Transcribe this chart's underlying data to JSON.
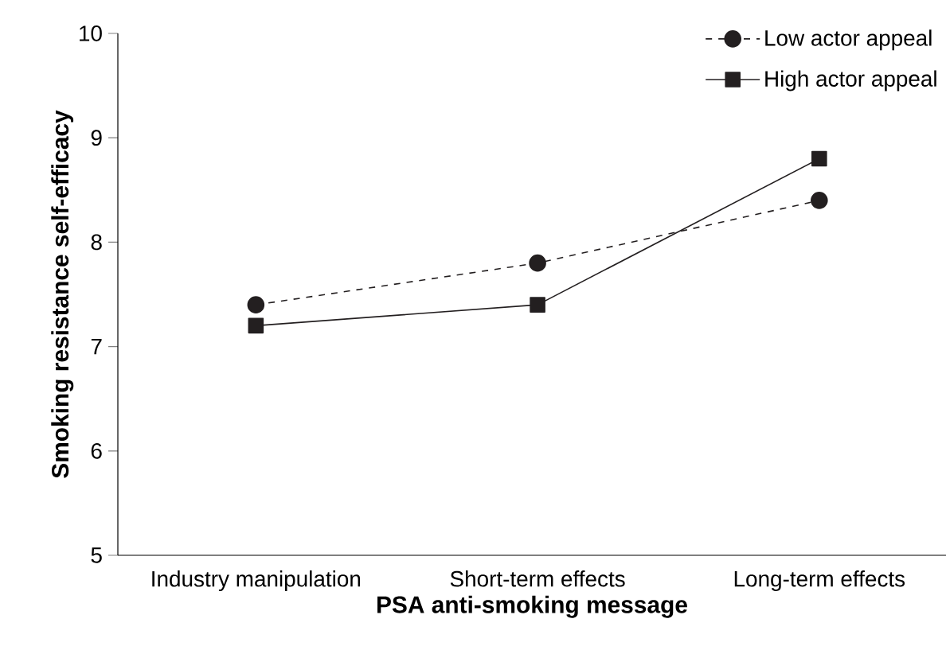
{
  "chart_data": {
    "type": "line",
    "xlabel": "PSA anti-smoking message",
    "ylabel": "Smoking resistance self-efficacy",
    "categories": [
      "Industry manipulation",
      "Short-term effects",
      "Long-term effects"
    ],
    "series": [
      {
        "name": "Low actor appeal",
        "color": "#231f20",
        "marker": "circle",
        "line_style": "dashed",
        "values": [
          7.4,
          7.8,
          8.4
        ]
      },
      {
        "name": "High actor appeal",
        "color": "#231f20",
        "marker": "square",
        "line_style": "solid",
        "values": [
          7.2,
          7.4,
          8.8
        ]
      }
    ],
    "ylim": [
      5,
      10
    ],
    "yticks": [
      5,
      6,
      7,
      8,
      9,
      10
    ],
    "legend": "top right",
    "grid": false
  }
}
